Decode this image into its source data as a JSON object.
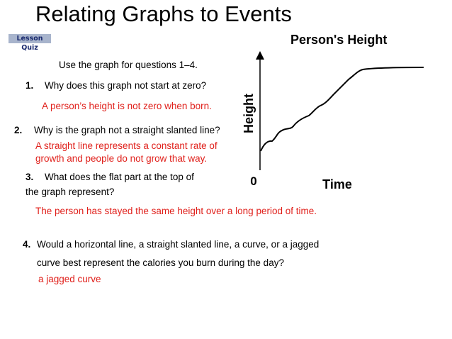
{
  "header": {
    "title": "Relating Graphs to Events",
    "badge": "Lesson Quiz"
  },
  "intro": "Use the graph for questions 1–4.",
  "questions": [
    {
      "number": "1.",
      "lines": [
        "Why does this graph not start at zero?"
      ],
      "answer": [
        "A person’s height is not zero when born."
      ]
    },
    {
      "number": "2.",
      "lines": [
        "Why is the graph not a straight slanted line?"
      ],
      "answer": [
        "A straight line represents a constant rate of",
        "growth and people do not grow that way."
      ]
    },
    {
      "number": "3.",
      "lines": [
        "What does the flat part at the top of",
        "the graph represent?"
      ],
      "answer": [
        "The person has stayed the same height over a long period of time."
      ]
    },
    {
      "number": "4.",
      "lines": [
        "Would a horizontal line, a straight slanted line, a curve, or a jagged",
        "curve best represent the calories you burn during the day?"
      ],
      "answer": [
        "a jagged curve"
      ]
    }
  ],
  "graph": {
    "title": "Person's Height",
    "y_label": "Height",
    "x_label": "Time",
    "origin": "0"
  }
}
